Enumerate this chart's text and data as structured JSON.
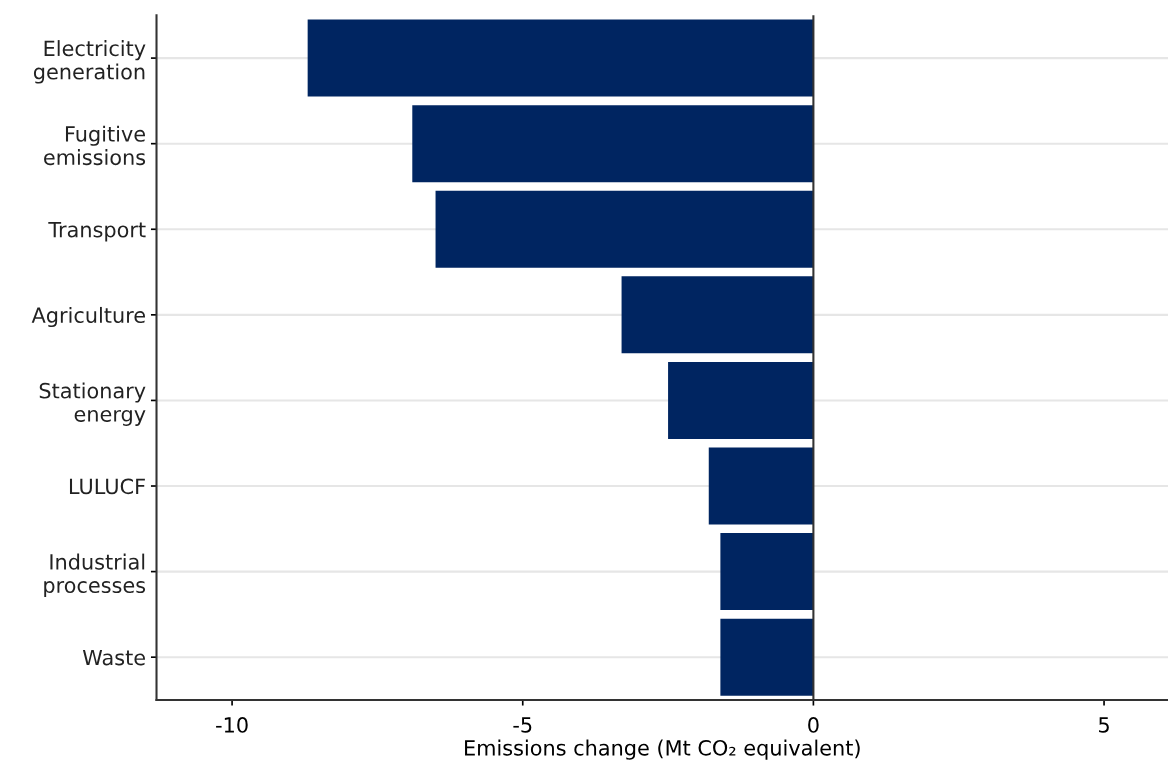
{
  "chart_data": {
    "type": "bar",
    "orientation": "horizontal",
    "categories": [
      "Electricity\ngeneration",
      "Fugitive\nemissions",
      "Transport",
      "Agriculture",
      "Stationary\nenergy",
      "LULUCF",
      "Industrial\nprocesses",
      "Waste"
    ],
    "values": [
      -8.7,
      -6.9,
      -6.5,
      -3.3,
      -2.5,
      -1.8,
      -1.6,
      -1.6
    ],
    "color": "#002561",
    "xlabel": "Emissions change (Mt CO₂ equivalent)",
    "xlim": [
      -11.3,
      6.1
    ],
    "xticks": [
      -10,
      -5,
      0,
      5
    ],
    "grid": "y",
    "ref_lines": [
      {
        "axis": "x",
        "value": 0,
        "color": "#333333"
      }
    ]
  }
}
